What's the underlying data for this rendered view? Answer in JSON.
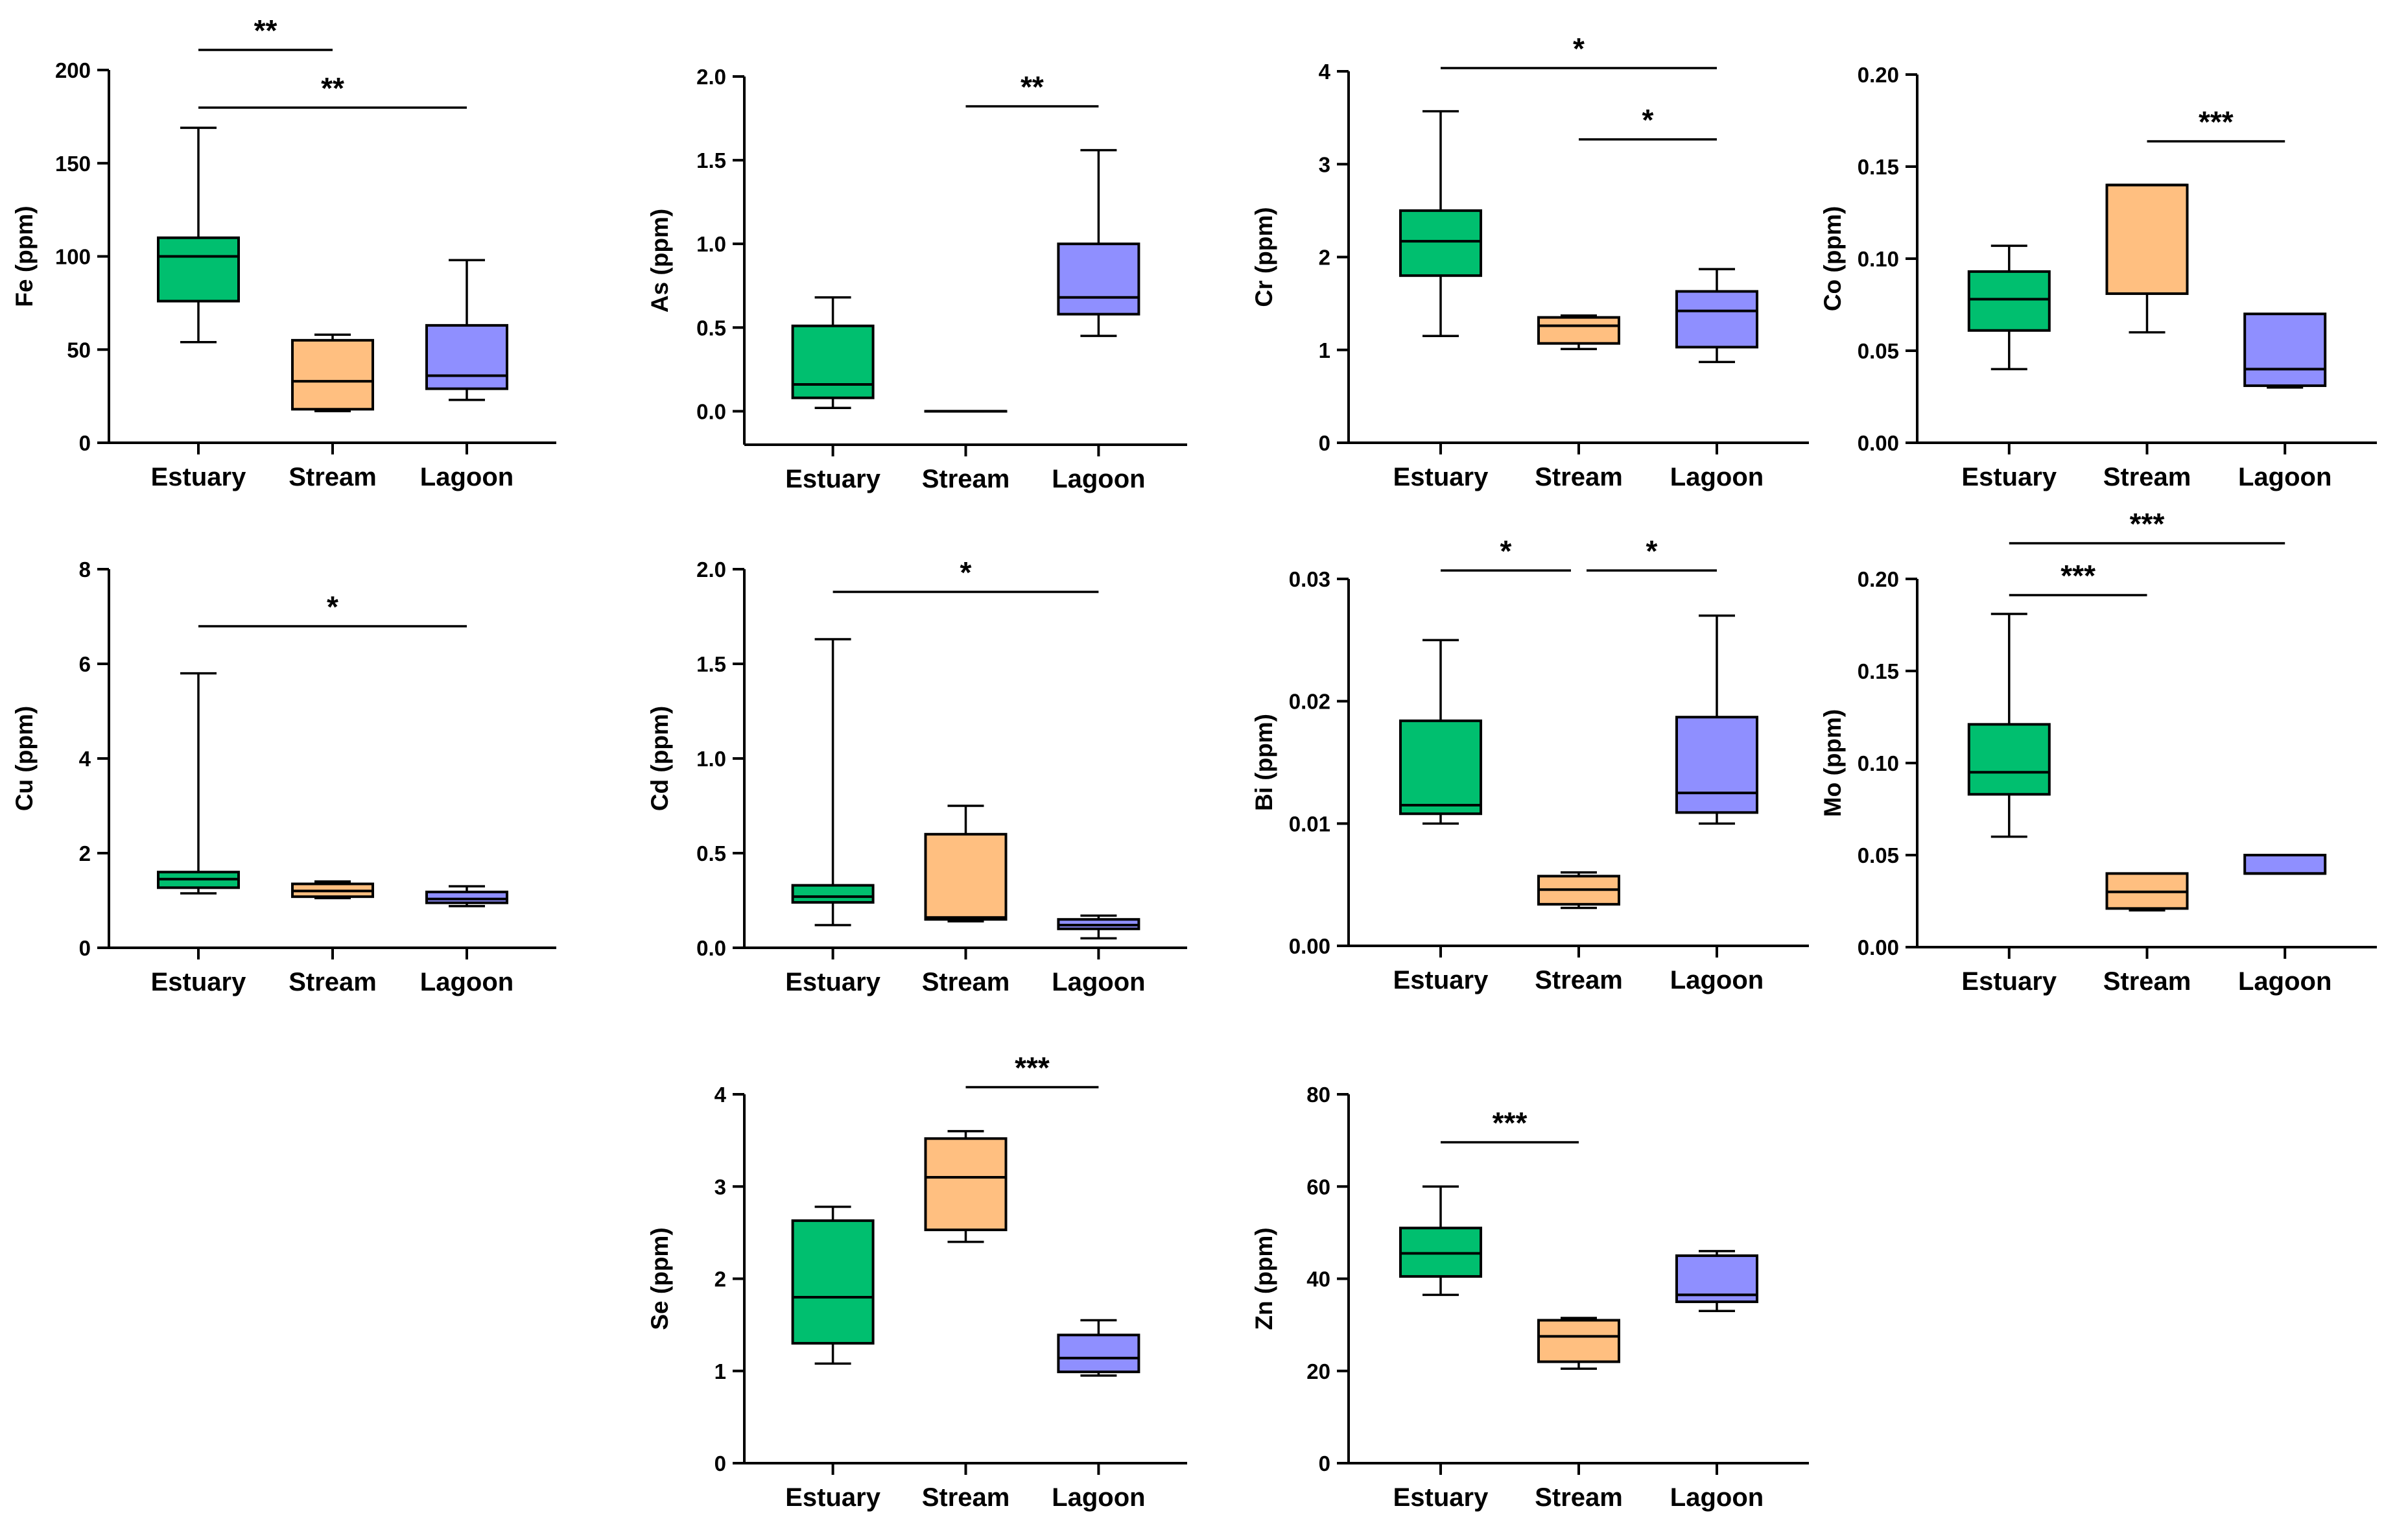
{
  "chart_data": [
    {
      "type": "box",
      "ylabel": "Fe (ppm)",
      "categories": [
        "Estuary",
        "Stream",
        "Lagoon"
      ],
      "ylim": [
        0,
        200
      ],
      "yticks": [
        "0",
        "50",
        "100",
        "150",
        "200"
      ],
      "colors": [
        "#00bf6f",
        "#ffbf80",
        "#8f8fff"
      ],
      "boxes": [
        {
          "min": 54,
          "q1": 76,
          "median": 100,
          "q3": 110,
          "max": 169
        },
        {
          "min": 17,
          "q1": 18,
          "median": 33,
          "q3": 55,
          "max": 58
        },
        {
          "min": 23,
          "q1": 29,
          "median": 36,
          "q3": 63,
          "max": 98
        }
      ],
      "significance": [
        {
          "from": 0,
          "to": 1,
          "label": "**"
        },
        {
          "from": 0,
          "to": 2,
          "label": "**"
        }
      ]
    },
    {
      "type": "box",
      "ylabel": "As (ppm)",
      "categories": [
        "Estuary",
        "Stream",
        "Lagoon"
      ],
      "ylim": [
        -0.2,
        2.0
      ],
      "yticks": [
        "0.0",
        "0.5",
        "1.0",
        "1.5",
        "2.0"
      ],
      "colors": [
        "#00bf6f",
        "#ffbf80",
        "#8f8fff"
      ],
      "boxes": [
        {
          "min": 0.02,
          "q1": 0.08,
          "median": 0.16,
          "q3": 0.51,
          "max": 0.68
        },
        {
          "min": 0.0,
          "q1": 0.0,
          "median": 0.0,
          "q3": 0.0,
          "max": 0.0
        },
        {
          "min": 0.45,
          "q1": 0.58,
          "median": 0.68,
          "q3": 1.0,
          "max": 1.56
        }
      ],
      "significance": [
        {
          "from": 1,
          "to": 2,
          "label": "**"
        }
      ]
    },
    {
      "type": "box",
      "ylabel": "Cr (ppm)",
      "categories": [
        "Estuary",
        "Stream",
        "Lagoon"
      ],
      "ylim": [
        0,
        4
      ],
      "yticks": [
        "0",
        "1",
        "2",
        "3",
        "4"
      ],
      "colors": [
        "#00bf6f",
        "#ffbf80",
        "#8f8fff"
      ],
      "boxes": [
        {
          "min": 1.15,
          "q1": 1.8,
          "median": 2.17,
          "q3": 2.5,
          "max": 3.57
        },
        {
          "min": 1.01,
          "q1": 1.07,
          "median": 1.26,
          "q3": 1.35,
          "max": 1.37
        },
        {
          "min": 0.87,
          "q1": 1.03,
          "median": 1.42,
          "q3": 1.63,
          "max": 1.87
        }
      ],
      "significance": [
        {
          "from": 0,
          "to": 2,
          "label": "*"
        },
        {
          "from": 1,
          "to": 2,
          "label": "*"
        }
      ]
    },
    {
      "type": "box",
      "ylabel": "Co (ppm)",
      "categories": [
        "Estuary",
        "Stream",
        "Lagoon"
      ],
      "ylim": [
        0,
        0.2
      ],
      "yticks": [
        "0.00",
        "0.05",
        "0.10",
        "0.15",
        "0.20"
      ],
      "colors": [
        "#00bf6f",
        "#ffbf80",
        "#8f8fff"
      ],
      "boxes": [
        {
          "min": 0.04,
          "q1": 0.061,
          "median": 0.078,
          "q3": 0.093,
          "max": 0.107
        },
        {
          "min": 0.06,
          "q1": 0.081,
          "median": 0.14,
          "q3": 0.14,
          "max": 0.14
        },
        {
          "min": 0.03,
          "q1": 0.031,
          "median": 0.04,
          "q3": 0.07,
          "max": 0.07
        }
      ],
      "significance": [
        {
          "from": 1,
          "to": 2,
          "label": "***"
        }
      ]
    },
    {
      "type": "box",
      "ylabel": "Cu (ppm)",
      "categories": [
        "Estuary",
        "Stream",
        "Lagoon"
      ],
      "ylim": [
        0,
        8
      ],
      "yticks": [
        "0",
        "2",
        "4",
        "6",
        "8"
      ],
      "colors": [
        "#00bf6f",
        "#ffbf80",
        "#8f8fff"
      ],
      "boxes": [
        {
          "min": 1.15,
          "q1": 1.27,
          "median": 1.45,
          "q3": 1.6,
          "max": 5.8
        },
        {
          "min": 1.05,
          "q1": 1.08,
          "median": 1.2,
          "q3": 1.35,
          "max": 1.4
        },
        {
          "min": 0.88,
          "q1": 0.95,
          "median": 1.03,
          "q3": 1.18,
          "max": 1.3
        }
      ],
      "significance": [
        {
          "from": 0,
          "to": 2,
          "label": "*"
        }
      ]
    },
    {
      "type": "box",
      "ylabel": "Cd (ppm)",
      "categories": [
        "Estuary",
        "Stream",
        "Lagoon"
      ],
      "ylim": [
        0,
        2.0
      ],
      "yticks": [
        "0.0",
        "0.5",
        "1.0",
        "1.5",
        "2.0"
      ],
      "colors": [
        "#00bf6f",
        "#ffbf80",
        "#8f8fff"
      ],
      "boxes": [
        {
          "min": 0.12,
          "q1": 0.24,
          "median": 0.27,
          "q3": 0.33,
          "max": 1.63
        },
        {
          "min": 0.14,
          "q1": 0.15,
          "median": 0.16,
          "q3": 0.6,
          "max": 0.75
        },
        {
          "min": 0.05,
          "q1": 0.1,
          "median": 0.12,
          "q3": 0.15,
          "max": 0.17
        }
      ],
      "significance": [
        {
          "from": 0,
          "to": 2,
          "label": "*"
        }
      ]
    },
    {
      "type": "box",
      "ylabel": "Bi (ppm)",
      "categories": [
        "Estuary",
        "Stream",
        "Lagoon"
      ],
      "ylim": [
        0,
        0.03
      ],
      "yticks": [
        "0.00",
        "0.01",
        "0.02",
        "0.03"
      ],
      "colors": [
        "#00bf6f",
        "#ffbf80",
        "#8f8fff"
      ],
      "boxes": [
        {
          "min": 0.01,
          "q1": 0.0108,
          "median": 0.0115,
          "q3": 0.0184,
          "max": 0.025
        },
        {
          "min": 0.0031,
          "q1": 0.0034,
          "median": 0.0046,
          "q3": 0.0057,
          "max": 0.006
        },
        {
          "min": 0.01,
          "q1": 0.0109,
          "median": 0.0125,
          "q3": 0.0187,
          "max": 0.027
        }
      ],
      "significance": [
        {
          "from": 0,
          "to": 1,
          "label": "*"
        },
        {
          "from": 1,
          "to": 2,
          "label": "*"
        }
      ]
    },
    {
      "type": "box",
      "ylabel": "Mo (ppm)",
      "categories": [
        "Estuary",
        "Stream",
        "Lagoon"
      ],
      "ylim": [
        0,
        0.2
      ],
      "yticks": [
        "0.00",
        "0.05",
        "0.10",
        "0.15",
        "0.20"
      ],
      "colors": [
        "#00bf6f",
        "#ffbf80",
        "#8f8fff"
      ],
      "boxes": [
        {
          "min": 0.06,
          "q1": 0.083,
          "median": 0.095,
          "q3": 0.121,
          "max": 0.181
        },
        {
          "min": 0.02,
          "q1": 0.021,
          "median": 0.03,
          "q3": 0.04,
          "max": 0.04
        },
        {
          "min": 0.04,
          "q1": 0.04,
          "median": 0.04,
          "q3": 0.05,
          "max": 0.05
        }
      ],
      "significance": [
        {
          "from": 0,
          "to": 1,
          "label": "***"
        },
        {
          "from": 0,
          "to": 2,
          "label": "***"
        }
      ]
    },
    {
      "type": "box",
      "ylabel": "Se (ppm)",
      "categories": [
        "Estuary",
        "Stream",
        "Lagoon"
      ],
      "ylim": [
        0,
        4
      ],
      "yticks": [
        "0",
        "1",
        "2",
        "3",
        "4"
      ],
      "colors": [
        "#00bf6f",
        "#ffbf80",
        "#8f8fff"
      ],
      "boxes": [
        {
          "min": 1.08,
          "q1": 1.3,
          "median": 1.8,
          "q3": 2.63,
          "max": 2.78
        },
        {
          "min": 2.4,
          "q1": 2.53,
          "median": 3.1,
          "q3": 3.52,
          "max": 3.6
        },
        {
          "min": 0.95,
          "q1": 0.99,
          "median": 1.14,
          "q3": 1.39,
          "max": 1.55
        }
      ],
      "significance": [
        {
          "from": 1,
          "to": 2,
          "label": "***"
        }
      ]
    },
    {
      "type": "box",
      "ylabel": "Zn (ppm)",
      "categories": [
        "Estuary",
        "Stream",
        "Lagoon"
      ],
      "ylim": [
        0,
        80
      ],
      "yticks": [
        "0",
        "20",
        "40",
        "60",
        "80"
      ],
      "colors": [
        "#00bf6f",
        "#ffbf80",
        "#8f8fff"
      ],
      "boxes": [
        {
          "min": 36.5,
          "q1": 40.5,
          "median": 45.5,
          "q3": 51,
          "max": 60
        },
        {
          "min": 20.5,
          "q1": 22,
          "median": 27.5,
          "q3": 31,
          "max": 31.5
        },
        {
          "min": 33,
          "q1": 35,
          "median": 36.5,
          "q3": 45,
          "max": 46
        }
      ],
      "significance": [
        {
          "from": 0,
          "to": 1,
          "label": "***"
        }
      ]
    }
  ]
}
